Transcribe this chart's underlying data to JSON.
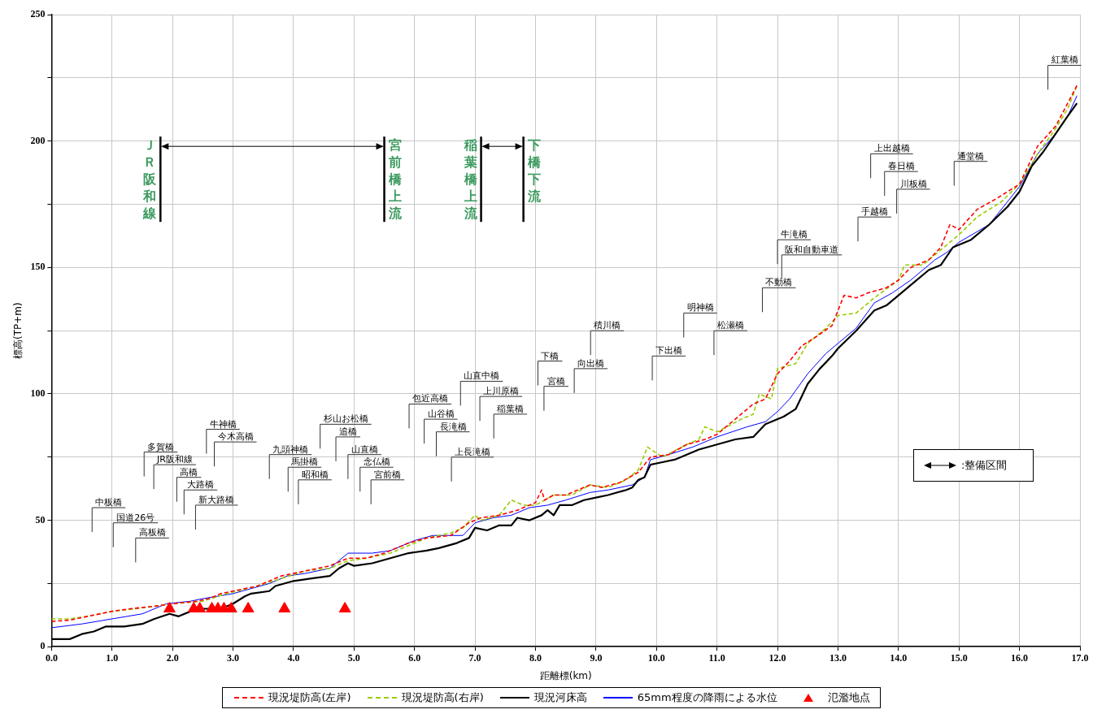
{
  "chart_data": {
    "type": "line",
    "xlabel": "距離標(km)",
    "ylabel": "標高(TP+m)",
    "xlim": [
      0,
      17
    ],
    "ylim": [
      0,
      250
    ],
    "xticks": [
      {
        "value": 0,
        "label": "0.0"
      },
      {
        "value": 1,
        "label": "1.0"
      },
      {
        "value": 2,
        "label": "2.0"
      },
      {
        "value": 3,
        "label": "3.0"
      },
      {
        "value": 4,
        "label": "4.0"
      },
      {
        "value": 5,
        "label": "5.0"
      },
      {
        "value": 6,
        "label": "6.0"
      },
      {
        "value": 7,
        "label": "7.0"
      },
      {
        "value": 8,
        "label": "8.0"
      },
      {
        "value": 9,
        "label": "9.0"
      },
      {
        "value": 10,
        "label": "10.0"
      },
      {
        "value": 11,
        "label": "11.0"
      },
      {
        "value": 12,
        "label": "12.0"
      },
      {
        "value": 13,
        "label": "13.0"
      },
      {
        "value": 14,
        "label": "14.0"
      },
      {
        "value": 15,
        "label": "15.0"
      },
      {
        "value": 16,
        "label": "16.0"
      },
      {
        "value": 17,
        "label": "17.0"
      }
    ],
    "yticks": [
      0,
      {
        "value": 25,
        "label": null
      },
      50,
      {
        "value": 75,
        "label": null
      },
      100,
      {
        "value": 125,
        "label": null
      },
      150,
      {
        "value": 175,
        "label": null
      },
      200,
      {
        "value": 225,
        "label": null
      },
      250
    ],
    "grid": true,
    "legend": "bottom",
    "marker": "none",
    "series": [
      {
        "name": "現況堤防高(左岸)",
        "color": "#ff0000",
        "line_style": "dashed",
        "x": [
          0,
          0.3,
          0.7,
          1,
          1.3,
          1.7,
          2,
          2.4,
          2.6,
          2.8,
          3,
          3.4,
          3.8,
          4.2,
          4.6,
          4.9,
          5.2,
          5.5,
          5.9,
          6.2,
          6.6,
          6.9,
          7.1,
          7.4,
          7.7,
          8,
          8.1,
          8.15,
          8.3,
          8.5,
          8.7,
          8.9,
          9.1,
          9.4,
          9.7,
          9.9,
          10.2,
          10.5,
          10.8,
          11,
          11.2,
          11.4,
          11.6,
          11.8,
          12,
          12.2,
          12.4,
          12.6,
          12.9,
          13.1,
          13.3,
          13.5,
          13.8,
          14,
          14.2,
          14.5,
          14.7,
          14.85,
          15,
          15.3,
          15.6,
          16,
          16.3,
          16.6,
          16.95
        ],
        "values": [
          10,
          10.5,
          12.5,
          14,
          15,
          16,
          17,
          18,
          19,
          21,
          22,
          24,
          28,
          30,
          32,
          35,
          35,
          37,
          41,
          43,
          44,
          49,
          51,
          52,
          54,
          57,
          62,
          58,
          60,
          60,
          62,
          64,
          63,
          65,
          69,
          75,
          76,
          80,
          82,
          84,
          88,
          92,
          96,
          98,
          108,
          113,
          119,
          122,
          127,
          139,
          138,
          140,
          142,
          145,
          150,
          153,
          158,
          167,
          165,
          173,
          177,
          183,
          198,
          206,
          222
        ]
      },
      {
        "name": "現況堤防高(右岸)",
        "color": "#99cc00",
        "line_style": "dashed",
        "x": [
          0,
          0.3,
          0.7,
          1,
          1.4,
          2,
          2.5,
          2.9,
          3.4,
          3.8,
          4.2,
          4.6,
          4.9,
          5.2,
          5.6,
          5.9,
          6.2,
          6.6,
          6.8,
          7,
          7.1,
          7.4,
          7.6,
          7.8,
          8,
          8.3,
          8.6,
          8.9,
          9.2,
          9.5,
          9.7,
          9.85,
          10.1,
          10.5,
          10.7,
          10.8,
          11,
          11.4,
          11.6,
          11.7,
          11.9,
          12,
          12.3,
          12.5,
          12.8,
          13,
          13.3,
          13.6,
          14,
          14.1,
          14.4,
          14.7,
          15,
          15.3,
          15.7,
          16,
          16.3,
          16.6,
          16.8,
          16.95
        ],
        "values": [
          11,
          11,
          12.5,
          14,
          15,
          17,
          18,
          21,
          24,
          27,
          30,
          31,
          34,
          35,
          37,
          40,
          43,
          45,
          47,
          52,
          50,
          52,
          58,
          56,
          56,
          60,
          60,
          64,
          63,
          66,
          70,
          79,
          75,
          80,
          82,
          87,
          85,
          90,
          92,
          100,
          98,
          110,
          112,
          120,
          126,
          131,
          132,
          138,
          145,
          151,
          151,
          157,
          163,
          170,
          176,
          183,
          195,
          205,
          213,
          222
        ]
      },
      {
        "name": "現況河床高",
        "color": "#000000",
        "line_style": "solid",
        "x": [
          0,
          0.3,
          0.5,
          0.7,
          0.9,
          1.2,
          1.5,
          1.7,
          1.95,
          2.1,
          2.3,
          2.5,
          2.8,
          3,
          3.2,
          3.3,
          3.6,
          3.7,
          4,
          4.3,
          4.6,
          4.75,
          4.9,
          5,
          5.3,
          5.6,
          5.9,
          6.2,
          6.4,
          6.7,
          6.9,
          7,
          7.2,
          7.4,
          7.6,
          7.7,
          7.9,
          8.1,
          8.2,
          8.3,
          8.4,
          8.6,
          8.8,
          9,
          9.2,
          9.5,
          9.6,
          9.7,
          9.8,
          9.9,
          10.1,
          10.3,
          10.5,
          10.7,
          11,
          11.3,
          11.6,
          11.8,
          12.1,
          12.3,
          12.5,
          12.7,
          12.9,
          13,
          13.3,
          13.6,
          13.8,
          14,
          14.2,
          14.5,
          14.7,
          14.9,
          15.2,
          15.5,
          15.8,
          16,
          16.2,
          16.4,
          16.6,
          16.8,
          16.95
        ],
        "values": [
          3,
          3,
          5,
          6,
          8,
          8,
          9,
          11,
          13,
          12,
          14,
          15,
          15,
          17,
          20,
          21,
          22,
          24,
          26,
          27,
          28,
          31,
          33,
          32,
          33,
          35,
          37,
          38,
          39,
          41,
          43,
          47,
          46,
          48,
          48,
          51,
          50,
          52,
          54,
          52,
          56,
          56,
          58,
          59,
          60,
          62,
          63,
          66,
          67,
          72,
          73,
          74,
          76,
          78,
          80,
          82,
          83,
          88,
          91,
          94,
          104,
          110,
          115,
          118,
          125,
          133,
          135,
          139,
          143,
          149,
          151,
          158,
          161,
          167,
          174,
          180,
          190,
          196,
          203,
          210,
          215
        ]
      },
      {
        "name": "65mm程度の降雨による水位",
        "color": "#0000ff",
        "line_style": "solid",
        "x": [
          0,
          0.5,
          1,
          1.5,
          1.9,
          2.3,
          2.5,
          3,
          3.3,
          3.6,
          3.9,
          4.2,
          4.6,
          4.9,
          5.3,
          5.6,
          6,
          6.3,
          6.8,
          7,
          7.3,
          7.6,
          7.9,
          8.2,
          8.5,
          8.9,
          9.2,
          9.6,
          9.8,
          9.9,
          10.2,
          10.6,
          11,
          11.5,
          11.8,
          12,
          12.2,
          12.5,
          12.8,
          13,
          13.3,
          13.6,
          13.9,
          14.2,
          14.6,
          14.8,
          15,
          15.5,
          16,
          16.3,
          16.6,
          16.8,
          16.95
        ],
        "values": [
          7.5,
          9,
          11,
          13,
          17,
          18,
          19,
          21,
          23,
          25,
          28,
          29,
          31,
          37,
          37,
          38,
          42,
          44,
          44,
          49,
          51,
          52,
          55,
          56,
          58,
          61,
          62,
          64,
          67,
          74,
          76,
          79,
          83,
          87,
          89,
          93,
          98,
          108,
          116,
          120,
          126,
          136,
          140,
          145,
          153,
          156,
          160,
          167,
          182,
          195,
          203,
          210,
          218
        ]
      },
      {
        "name": "氾濫地点",
        "color": "#ff0000",
        "type": "scatter",
        "marker": "triangle",
        "x": [
          1.95,
          2.35,
          2.45,
          2.65,
          2.75,
          2.85,
          2.97,
          3.25,
          3.85,
          4.85
        ],
        "values": [
          15,
          15,
          15,
          15,
          15,
          15,
          15,
          15,
          15,
          15
        ]
      }
    ],
    "ref_lines": [
      {
        "axis": "x",
        "value": 1.8,
        "label": "ＪＲ阪和線",
        "color": "#000000"
      },
      {
        "axis": "x",
        "value": 5.5,
        "label": "宮前橋上流",
        "color": "#000000"
      },
      {
        "axis": "x",
        "value": 7.1,
        "label": "稲葉橋上流",
        "color": "#000000"
      },
      {
        "axis": "x",
        "value": 7.8,
        "label": "下橋下流",
        "color": "#000000"
      }
    ],
    "annotations": [
      ":整備区間",
      "中板橋",
      "国道26号",
      "高板橋",
      "多賀橋",
      "JR阪和線",
      "高橋",
      "大路橋",
      "新大路橋",
      "牛神橋",
      "今木高橋",
      "九頭神橋",
      "馬掛橋",
      "昭和橋",
      "杉山お松橋",
      "追橋",
      "山直橋",
      "念仏橋",
      "宮前橋",
      "包近高橋",
      "山谷橋",
      "長滝橋",
      "上長滝橋",
      "山直中橋",
      "上川原橋",
      "稲葉橋",
      "下橋",
      "宮橋",
      "向出橋",
      "積川橋",
      "下出橋",
      "明神橋",
      "松瀬橋",
      "不動橋",
      "牛滝橋",
      "阪和自動車道",
      "手越橋",
      "上出越橋",
      "春日橋",
      "川板橋",
      "通堂橋",
      "紅葉橋"
    ]
  }
}
